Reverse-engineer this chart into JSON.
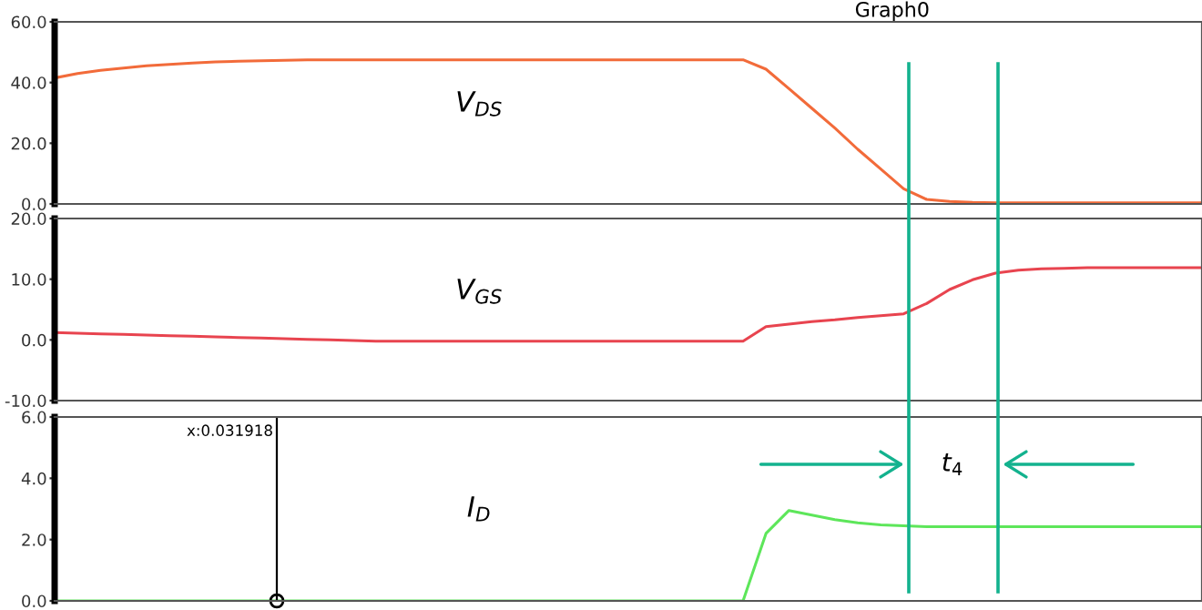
{
  "chart_data": [
    {
      "type": "line",
      "title": "Graph0",
      "annotations": [
        "V$_{DS}$"
      ],
      "categories": [
        null,
        null,
        null,
        null,
        null,
        null,
        null,
        null,
        null,
        null,
        null,
        null,
        null,
        null,
        null,
        null,
        null,
        null,
        null,
        null,
        null,
        null,
        null,
        null,
        null,
        null,
        null,
        null,
        null,
        null,
        null,
        null,
        null,
        null,
        null,
        null,
        null,
        null,
        null,
        null,
        null,
        null,
        null,
        null,
        null,
        null,
        null,
        null,
        null,
        null,
        null
      ],
      "series": [
        {
          "color": "#f26b3a",
          "values": [
            41.5,
            43,
            44,
            44.8,
            45.5,
            46,
            46.4,
            46.8,
            47,
            47.2,
            47.3,
            47.5,
            47.5,
            47.5,
            47.5,
            47.5,
            47.5,
            47.5,
            47.5,
            47.5,
            47.5,
            47.5,
            47.5,
            47.5,
            47.5,
            47.5,
            47.5,
            47.5,
            47.5,
            47.5,
            47.5,
            44.4,
            38,
            31.5,
            25,
            18,
            11.5,
            5,
            1.5,
            0.8,
            0.5,
            0.4,
            0.4,
            0.4,
            0.4,
            0.4,
            0.4,
            0.4,
            0.4,
            0.4,
            0.4
          ]
        }
      ],
      "ylim": [
        0,
        60
      ],
      "yticks": [
        {
          "value": 0,
          "label": "0.0"
        },
        {
          "value": 20,
          "label": "20.0"
        },
        {
          "value": 40,
          "label": "40.0"
        },
        {
          "value": 60,
          "label": "60.0"
        }
      ],
      "tick_labels": "y",
      "grid": false,
      "legend": false
    },
    {
      "type": "line",
      "annotations": [
        "V$_{GS}$"
      ],
      "categories": [
        null,
        null,
        null,
        null,
        null,
        null,
        null,
        null,
        null,
        null,
        null,
        null,
        null,
        null,
        null,
        null,
        null,
        null,
        null,
        null,
        null,
        null,
        null,
        null,
        null,
        null,
        null,
        null,
        null,
        null,
        null,
        null,
        null,
        null,
        null,
        null,
        null,
        null,
        null,
        null,
        null,
        null,
        null,
        null,
        null,
        null,
        null,
        null,
        null,
        null,
        null
      ],
      "series": [
        {
          "color": "#e8444f",
          "values": [
            1.2,
            1.1,
            1.0,
            0.9,
            0.8,
            0.7,
            0.6,
            0.5,
            0.4,
            0.3,
            0.2,
            0.1,
            0,
            -0.1,
            -0.2,
            -0.2,
            -0.2,
            -0.2,
            -0.2,
            -0.2,
            -0.2,
            -0.2,
            -0.2,
            -0.2,
            -0.2,
            -0.2,
            -0.2,
            -0.2,
            -0.2,
            -0.2,
            -0.2,
            2.2,
            2.6,
            3.0,
            3.3,
            3.7,
            4.0,
            4.3,
            6.0,
            8.3,
            9.9,
            11.0,
            11.5,
            11.7,
            11.8,
            11.9,
            11.9,
            11.9,
            11.9,
            11.9,
            11.9
          ]
        }
      ],
      "ylim": [
        -10,
        20
      ],
      "yticks": [
        {
          "value": -10,
          "label": "-10.0"
        },
        {
          "value": 0,
          "label": "0.0"
        },
        {
          "value": 10,
          "label": "10.0"
        },
        {
          "value": 20,
          "label": "20.0"
        }
      ],
      "tick_labels": "y",
      "grid": false,
      "legend": false
    },
    {
      "type": "line",
      "annotations": [
        "I$_{D}$",
        "x:0.031918",
        "t$_{4}$"
      ],
      "categories": [
        null,
        null,
        null,
        null,
        null,
        null,
        null,
        null,
        null,
        null,
        null,
        null,
        null,
        null,
        null,
        null,
        null,
        null,
        null,
        null,
        null,
        null,
        null,
        null,
        null,
        null,
        null,
        null,
        null,
        null,
        null,
        null,
        null,
        null,
        null,
        null,
        null,
        null,
        null,
        null,
        null,
        null,
        null,
        null,
        null,
        null,
        null,
        null,
        null,
        null,
        null
      ],
      "series": [
        {
          "color": "#5de65a",
          "values": [
            0,
            0,
            0,
            0,
            0,
            0,
            0,
            0,
            0,
            0,
            0,
            0,
            0,
            0,
            0,
            0,
            0,
            0,
            0,
            0,
            0,
            0,
            0,
            0,
            0,
            0,
            0,
            0,
            0,
            0,
            0,
            2.2,
            2.95,
            2.8,
            2.65,
            2.55,
            2.48,
            2.45,
            2.42,
            2.42,
            2.42,
            2.42,
            2.42,
            2.42,
            2.42,
            2.42,
            2.42,
            2.42,
            2.42,
            2.42,
            2.42
          ]
        }
      ],
      "ylim": [
        0,
        6
      ],
      "yticks": [
        {
          "value": 0,
          "label": "0.0"
        },
        {
          "value": 2,
          "label": "2.0"
        },
        {
          "value": 4,
          "label": "4.0"
        },
        {
          "value": 6,
          "label": "6.0"
        }
      ],
      "tick_labels": "y",
      "grid": false,
      "legend": false
    }
  ]
}
